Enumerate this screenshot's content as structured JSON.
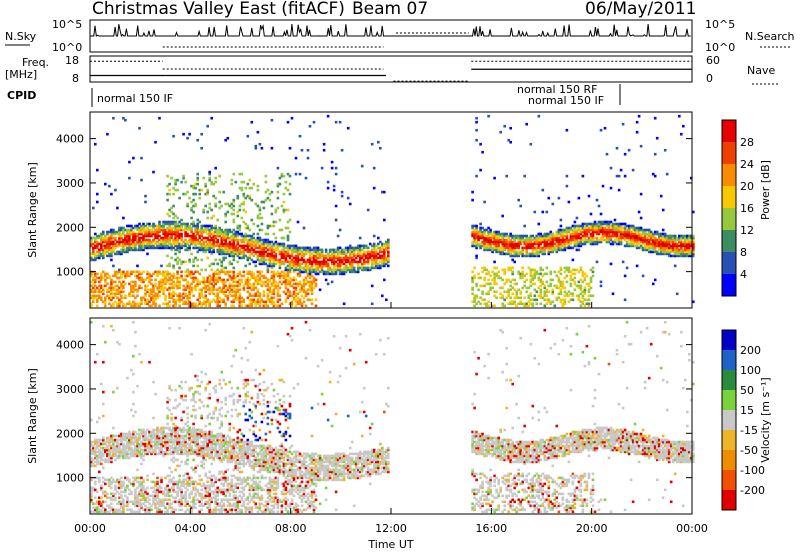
{
  "title": {
    "station": "Christmas Valley East (fitACF)",
    "beam": "Beam 07",
    "date": "06/May/2011"
  },
  "chart_data": [
    {
      "type": "line",
      "panel": "noise",
      "left_label": "N.Sky",
      "right_label": "N.Search",
      "left_ticks": [
        "10^5",
        "10^0"
      ],
      "right_ticks": [
        "10^5",
        "10^0"
      ],
      "style_left": "solid",
      "style_right": "dotted",
      "data_gaps_hours": [
        [
          11.75,
          15.25
        ]
      ]
    },
    {
      "type": "line",
      "panel": "frequency",
      "left_label_line1": "Freq.",
      "left_label_line2": "[MHz]",
      "right_label": "Nave",
      "left_ticks": [
        "18",
        "8"
      ],
      "right_ticks": [
        "60",
        "0"
      ],
      "ylim_left": [
        8,
        18
      ],
      "ylim_right": [
        0,
        60
      ],
      "freq_segments": [
        {
          "start": 0.0,
          "end": 3.0,
          "value": 10.5
        },
        {
          "start": 3.0,
          "end": 11.8,
          "value": 10.5
        },
        {
          "start": 15.2,
          "end": 24.0,
          "value": 12.9
        }
      ],
      "nave_segments": [
        {
          "start": 0.0,
          "end": 2.9,
          "value": 48
        },
        {
          "start": 2.9,
          "end": 11.7,
          "value": 30
        },
        {
          "start": 12.1,
          "end": 15.1,
          "value": 2
        },
        {
          "start": 15.2,
          "end": 24.0,
          "value": 48
        }
      ]
    },
    {
      "type": "table",
      "panel": "cpid",
      "label": "CPID",
      "modes": [
        "normal 150 IF",
        "normal 150 RF",
        "normal 150 IF"
      ]
    },
    {
      "type": "heatmap",
      "panel": "power",
      "ylabel": "Slant Range [km]",
      "yticks": [
        1000,
        2000,
        3000,
        4000
      ],
      "ylim": [
        180,
        4600
      ],
      "xlim_hours": [
        0,
        24
      ],
      "colorbar_label": "Power [dB]",
      "colorbar_ticks": [
        "28",
        "24",
        "20",
        "16",
        "12",
        "8",
        "4"
      ],
      "colors": [
        "#0000ff",
        "#2850b4",
        "#3c8c64",
        "#96c83c",
        "#fac800",
        "#fa8c00",
        "#f04000",
        "#e60000"
      ],
      "data_gap_hours": [
        11.9,
        15.2
      ]
    },
    {
      "type": "heatmap",
      "panel": "velocity",
      "ylabel": "Slant Range [km]",
      "yticks": [
        1000,
        2000,
        3000,
        4000
      ],
      "ylim": [
        180,
        4600
      ],
      "xlim_hours": [
        0,
        24
      ],
      "colorbar_label": "Velocity [m s⁻¹]",
      "colorbar_ticks": [
        "200",
        "100",
        "50",
        "15",
        "-15",
        "-50",
        "-100",
        "-200"
      ],
      "colors": [
        "#0000c8",
        "#1e64c8",
        "#288c3c",
        "#78d23c",
        "#c8c8c8",
        "#f0b428",
        "#f08c00",
        "#f05000",
        "#e10000"
      ],
      "xticks": [
        "00:00",
        "04:00",
        "08:00",
        "12:00",
        "16:00",
        "20:00",
        "00:00"
      ],
      "xlabel": "Time UT",
      "data_gap_hours": [
        11.9,
        15.2
      ]
    }
  ]
}
